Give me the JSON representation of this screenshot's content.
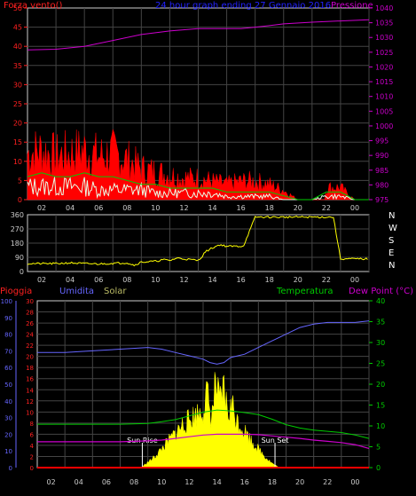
{
  "title": "24 hour graph ending 27 Gennaio 2016",
  "chart_data": [
    {
      "type": "line",
      "panel": "wind-pressure",
      "left_axis_label": "Forza vento()",
      "right_axis_label": "Pressione",
      "left_ylim": [
        0,
        50
      ],
      "left_ticks": [
        0,
        5,
        10,
        15,
        20,
        25,
        30,
        35,
        40,
        45,
        50
      ],
      "right_ylim": [
        975,
        1040
      ],
      "right_ticks": [
        975,
        980,
        985,
        990,
        995,
        1000,
        1005,
        1010,
        1015,
        1020,
        1025,
        1030,
        1035,
        1040
      ],
      "x_ticks": [
        "02",
        "04",
        "06",
        "08",
        "10",
        "12",
        "14",
        "16",
        "18",
        "20",
        "22",
        "00"
      ],
      "grid": true,
      "colors": {
        "gust": "#ff0000",
        "average": "#00cc00",
        "wind": "#ffffff",
        "pressure": "#cc00cc",
        "left_axis": "#ff2020",
        "right_axis": "#cc00cc",
        "title": "#2222ff"
      },
      "series": [
        {
          "name": "Pressione",
          "axis": "right",
          "x": [
            0,
            2,
            4,
            6,
            8,
            10,
            12,
            13,
            14,
            15,
            16,
            17,
            18,
            20,
            22,
            24
          ],
          "values": [
            1025.8,
            1026,
            1027,
            1029,
            1031,
            1032.2,
            1033,
            1033,
            1033,
            1033,
            1033.5,
            1034,
            1034.6,
            1035.2,
            1035.6,
            1036
          ]
        },
        {
          "name": "gust",
          "axis": "left",
          "x": [
            0,
            1,
            2,
            3,
            4,
            5,
            6,
            7,
            8,
            9,
            10,
            11,
            12,
            13,
            14,
            15,
            16,
            17,
            18,
            19,
            20,
            20.9,
            21,
            22,
            23,
            24
          ],
          "values": [
            15,
            16,
            14,
            15,
            16,
            14,
            15,
            13,
            10,
            9,
            8,
            7,
            7,
            6,
            5,
            6,
            6,
            5,
            3,
            0,
            0,
            0,
            4,
            4,
            0,
            0
          ]
        },
        {
          "name": "average",
          "axis": "left",
          "x": [
            0,
            1,
            2,
            3,
            4,
            5,
            6,
            7,
            8,
            9,
            10,
            11,
            12,
            13,
            14,
            15,
            16,
            17,
            18,
            19,
            20,
            21,
            22,
            23,
            24
          ],
          "values": [
            6,
            7,
            6,
            6,
            7,
            6,
            6,
            5,
            4,
            4,
            3,
            3,
            3,
            3,
            2,
            2,
            2,
            2,
            1,
            0,
            0,
            2,
            2,
            0,
            0
          ]
        },
        {
          "name": "wind",
          "axis": "left",
          "x": [
            0,
            1,
            2,
            3,
            4,
            5,
            6,
            7,
            8,
            9,
            10,
            11,
            12,
            13,
            14,
            15,
            16,
            17,
            18,
            19,
            20,
            21,
            22,
            23,
            24
          ],
          "values": [
            4,
            4,
            4,
            4,
            4,
            3,
            3,
            3,
            3,
            2,
            2,
            2,
            2,
            2,
            1,
            1,
            1,
            1,
            0,
            0,
            0,
            1,
            1,
            0,
            0
          ]
        }
      ]
    },
    {
      "type": "line",
      "panel": "wind-direction",
      "left_ylim": [
        0,
        360
      ],
      "left_ticks": [
        0,
        90,
        180,
        270,
        360
      ],
      "right_labels": [
        "N",
        "W",
        "S",
        "E",
        "N"
      ],
      "x_ticks": [
        "02",
        "04",
        "06",
        "08",
        "10",
        "12",
        "14",
        "16",
        "18",
        "20",
        "22",
        "00"
      ],
      "grid": true,
      "colors": {
        "direction": "#ffff00"
      },
      "series": [
        {
          "name": "direction",
          "x": [
            0,
            1,
            2,
            3,
            4,
            5,
            6,
            7,
            7.5,
            8,
            9,
            9.5,
            10,
            10.5,
            11,
            12,
            12.3,
            12.5,
            13,
            13.5,
            14,
            15,
            15.2,
            16,
            17,
            18,
            19,
            20,
            21,
            21.5,
            22,
            23,
            24
          ],
          "values": [
            50,
            50,
            50,
            55,
            50,
            48,
            52,
            55,
            40,
            60,
            65,
            75,
            70,
            85,
            80,
            70,
            100,
            125,
            150,
            170,
            160,
            160,
            165,
            345,
            345,
            345,
            345,
            345,
            345,
            345,
            80,
            80,
            80
          ]
        }
      ]
    },
    {
      "type": "line",
      "panel": "rain-humidity-solar-temperature",
      "legend": [
        "Pioggia",
        "Umidita",
        "Solar",
        "Temperatura",
        "Dew Point (°C)"
      ],
      "umidita_ylim": [
        0,
        100
      ],
      "umidita_ticks": [
        0,
        10,
        20,
        30,
        40,
        50,
        60,
        70,
        80,
        90,
        100
      ],
      "pioggia_ylim": [
        0,
        30
      ],
      "pioggia_ticks": [
        0,
        2,
        4,
        6,
        8,
        10,
        12,
        14,
        16,
        18,
        20,
        22,
        24,
        26,
        28,
        30
      ],
      "temp_ylim": [
        0,
        40
      ],
      "temp_ticks": [
        0,
        5,
        10,
        15,
        20,
        25,
        30,
        35,
        40
      ],
      "x_ticks": [
        "02",
        "04",
        "06",
        "08",
        "10",
        "12",
        "14",
        "16",
        "18",
        "20",
        "22",
        "00"
      ],
      "annotations": [
        {
          "text": "Sun Rise",
          "x": 7.6
        },
        {
          "text": "Sun Set",
          "x": 17.2
        }
      ],
      "grid": true,
      "colors": {
        "pioggia": "#ff0000",
        "umidita": "#6666ff",
        "solar": "#ffff00",
        "temperatura": "#00cc00",
        "dewpoint": "#cc00cc"
      },
      "series": [
        {
          "name": "Umidita",
          "axis": "umidita",
          "x": [
            0,
            2,
            4,
            6,
            8,
            9,
            10,
            11,
            12,
            12.5,
            13,
            13.5,
            14,
            15,
            16,
            17,
            18,
            19,
            20,
            21,
            22,
            23,
            24
          ],
          "values": [
            69,
            69,
            70,
            71,
            72,
            71,
            69,
            67,
            65,
            63,
            62,
            63,
            66,
            68,
            72,
            76,
            80,
            84,
            86,
            87,
            87,
            87,
            88
          ]
        },
        {
          "name": "Temperatura",
          "axis": "temp",
          "x": [
            0,
            2,
            4,
            6,
            8,
            9,
            10,
            11,
            12,
            13,
            14,
            15,
            16,
            17,
            18,
            19,
            20,
            21,
            22,
            23,
            24
          ],
          "values": [
            10.4,
            10.4,
            10.4,
            10.4,
            10.6,
            11,
            11.5,
            12.4,
            13.3,
            13.8,
            13.6,
            13.2,
            12.7,
            11.6,
            10.3,
            9.5,
            9,
            8.7,
            8.4,
            7.8,
            7
          ]
        },
        {
          "name": "Dew Point",
          "axis": "temp",
          "x": [
            0,
            2,
            4,
            6,
            8,
            9,
            10,
            11,
            12,
            13,
            14,
            15,
            16,
            17,
            18,
            19,
            20,
            21,
            22,
            23,
            24
          ],
          "values": [
            6.2,
            6.2,
            6.2,
            6.2,
            6.4,
            6.6,
            7,
            7.4,
            7.8,
            8,
            8,
            8,
            7.9,
            7.6,
            7.3,
            7,
            6.6,
            6.3,
            6,
            5.5,
            4.6
          ]
        },
        {
          "name": "Pioggia",
          "axis": "pioggia",
          "x": [
            0,
            24
          ],
          "values": [
            0,
            0
          ]
        }
      ],
      "solar": {
        "x": [
          0,
          7.5,
          8,
          8.5,
          9,
          9.5,
          10,
          10.5,
          11,
          11.5,
          12,
          12.3,
          12.6,
          12.9,
          13.2,
          13.5,
          13.8,
          14.1,
          14.4,
          14.7,
          15,
          15.5,
          16,
          16.5,
          17,
          17.5,
          24
        ],
        "values": [
          0,
          0,
          1,
          2,
          3.5,
          5,
          6.5,
          8,
          9,
          10,
          11,
          14,
          9,
          16,
          12,
          15,
          10,
          12,
          9,
          8,
          7,
          5,
          3.5,
          2,
          0.8,
          0,
          0
        ]
      }
    }
  ]
}
